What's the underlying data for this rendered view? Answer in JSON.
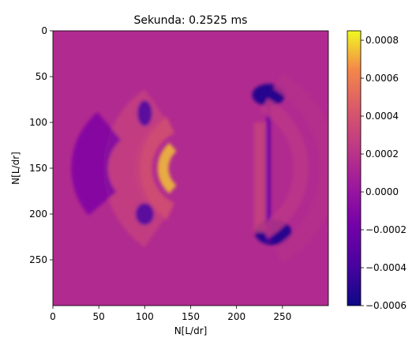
{
  "chart_data": {
    "type": "heatmap",
    "title": "Sekunda: 0.2525 ms",
    "xlabel": "N[L/dr]",
    "ylabel": "N[L/dr]",
    "xlim": [
      0,
      300
    ],
    "ylim": [
      300,
      0
    ],
    "x_ticks": [
      0,
      50,
      100,
      150,
      200,
      250
    ],
    "y_ticks": [
      0,
      50,
      100,
      150,
      200,
      250
    ],
    "colormap": "plasma",
    "background_color": "#b12a90",
    "colorbar": {
      "range": [
        -0.0006,
        0.00085
      ],
      "ticks": [
        {
          "value": 0.0008,
          "label": "0.0008"
        },
        {
          "value": 0.0006,
          "label": "0.0006"
        },
        {
          "value": 0.0004,
          "label": "0.0004"
        },
        {
          "value": 0.0002,
          "label": "0.0002"
        },
        {
          "value": 0.0,
          "label": "0.0000"
        },
        {
          "value": -0.0002,
          "label": "−0.0002"
        },
        {
          "value": -0.0004,
          "label": "−0.0004"
        },
        {
          "value": -0.0006,
          "label": "−0.0006"
        }
      ]
    },
    "field_features": [
      {
        "kind": "arc",
        "cx": 150,
        "cy": 150,
        "r": 30,
        "width": 12,
        "a0": 130,
        "a1": 230,
        "value": 0.00075
      },
      {
        "kind": "arc",
        "cx": 150,
        "cy": 150,
        "r": 52,
        "width": 20,
        "a0": 115,
        "a1": 245,
        "value": 0.0004
      },
      {
        "kind": "arc",
        "cx": 160,
        "cy": 150,
        "r": 85,
        "width": 40,
        "a0": 125,
        "a1": 235,
        "value": 0.00028
      },
      {
        "kind": "arc",
        "cx": 100,
        "cy": 150,
        "r": 60,
        "width": 40,
        "a0": 140,
        "a1": 230,
        "value": -0.00012
      },
      {
        "kind": "blob",
        "x": 100,
        "y": 90,
        "rx": 8,
        "ry": 14,
        "value": -0.00035
      },
      {
        "kind": "blob",
        "x": 100,
        "y": 200,
        "rx": 10,
        "ry": 12,
        "value": -0.00035
      },
      {
        "kind": "blob",
        "x": 235,
        "y": 70,
        "rx": 18,
        "ry": 12,
        "value": -0.00055
      },
      {
        "kind": "blob",
        "x": 240,
        "y": 220,
        "rx": 20,
        "ry": 14,
        "value": -0.00055
      },
      {
        "kind": "band",
        "x": 235,
        "y0": 80,
        "y1": 230,
        "width": 5,
        "value": -0.00025
      },
      {
        "kind": "band",
        "x": 225,
        "y0": 100,
        "y1": 220,
        "width": 12,
        "value": 0.0003
      },
      {
        "kind": "arc",
        "cx": 190,
        "cy": 150,
        "r": 110,
        "width": 20,
        "a0": 300,
        "a1": 420,
        "value": 0.00018
      },
      {
        "kind": "arc",
        "cx": 190,
        "cy": 150,
        "r": 80,
        "width": 16,
        "a0": 300,
        "a1": 420,
        "value": 0.00022
      }
    ]
  }
}
